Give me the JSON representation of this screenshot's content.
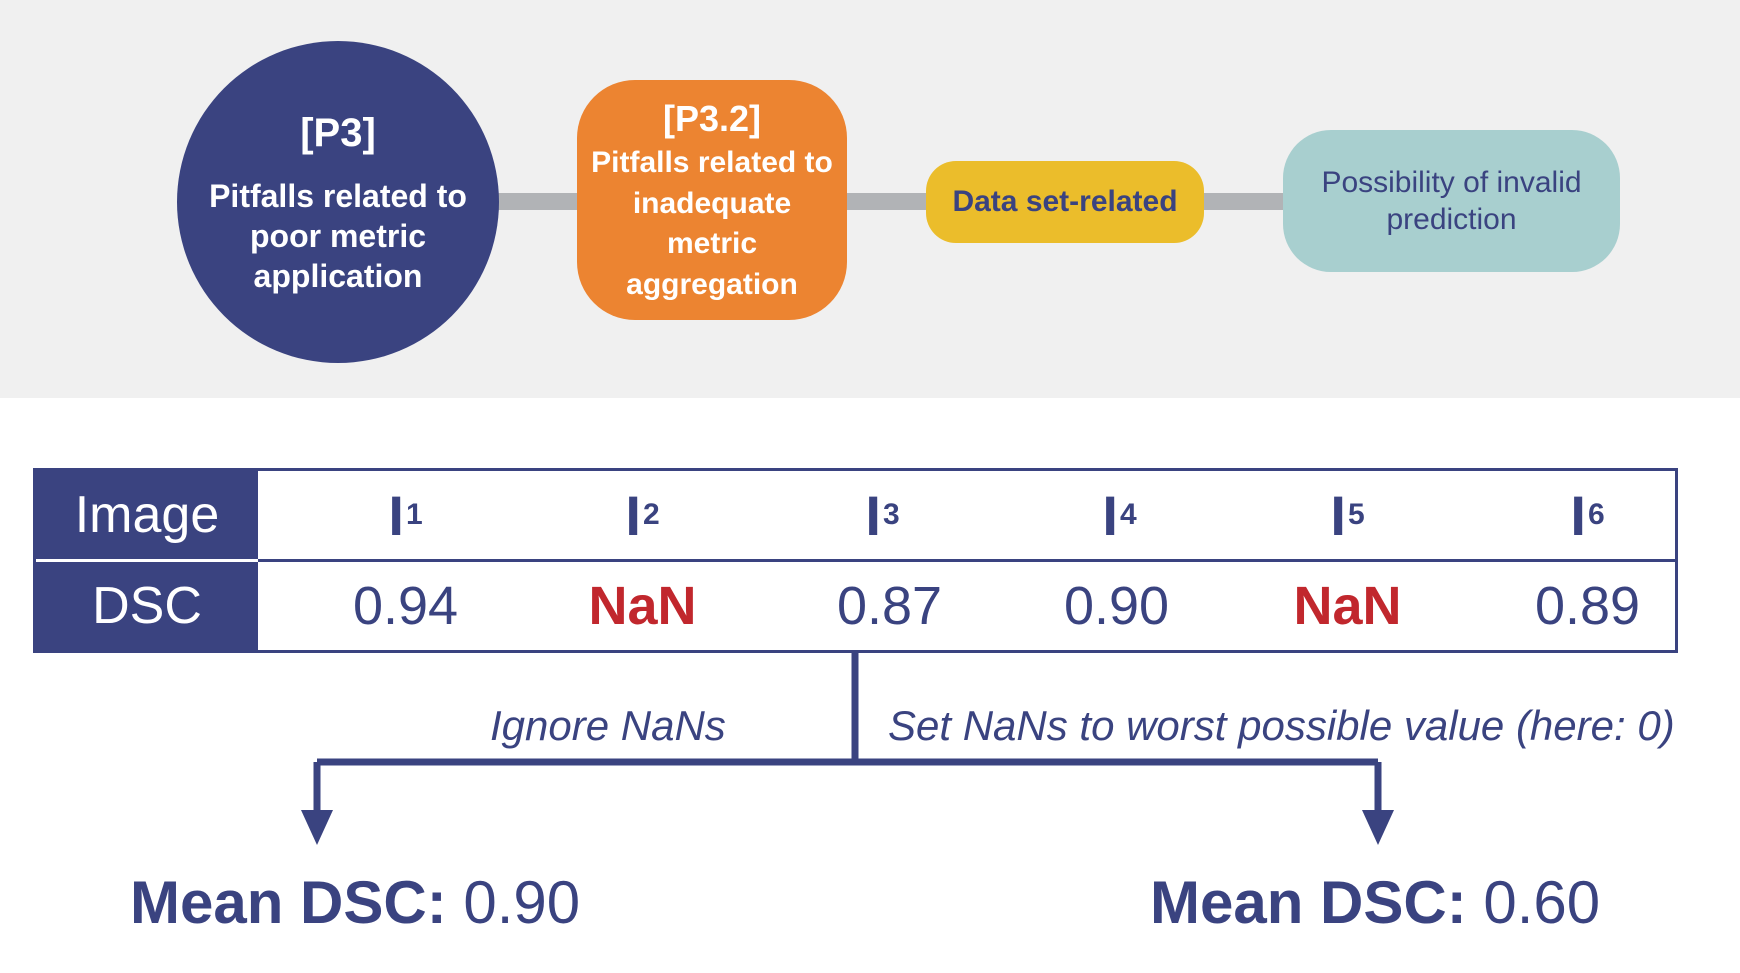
{
  "pitfall_chain": {
    "p3": {
      "code": "[P3]",
      "text": "Pitfalls related to poor metric application"
    },
    "p32": {
      "code": "[P3.2]",
      "text": "Pitfalls related to inadequate metric aggregation"
    },
    "category": "Data set-related",
    "source": "Possibility of invalid prediction"
  },
  "table": {
    "header_image": "Image",
    "header_dsc": "DSC",
    "images": [
      {
        "label": "I",
        "sub": "1",
        "dsc": "0.94"
      },
      {
        "label": "I",
        "sub": "2",
        "dsc": "NaN"
      },
      {
        "label": "I",
        "sub": "3",
        "dsc": "0.87"
      },
      {
        "label": "I",
        "sub": "4",
        "dsc": "0.90"
      },
      {
        "label": "I",
        "sub": "5",
        "dsc": "NaN"
      },
      {
        "label": "I",
        "sub": "6",
        "dsc": "0.89"
      }
    ]
  },
  "branches": {
    "left_label": "Ignore NaNs",
    "right_label": "Set NaNs to worst possible value (here: 0)"
  },
  "results": {
    "left": {
      "label": "Mean DSC:",
      "value": "0.90"
    },
    "right": {
      "label": "Mean DSC:",
      "value": "0.60"
    }
  },
  "colors": {
    "navy": "#3a4380",
    "orange": "#ec8431",
    "yellow": "#ebbd2b",
    "teal": "#a8cfcf",
    "nan_red": "#c1272d",
    "connector_grey": "#b1b3b6"
  }
}
